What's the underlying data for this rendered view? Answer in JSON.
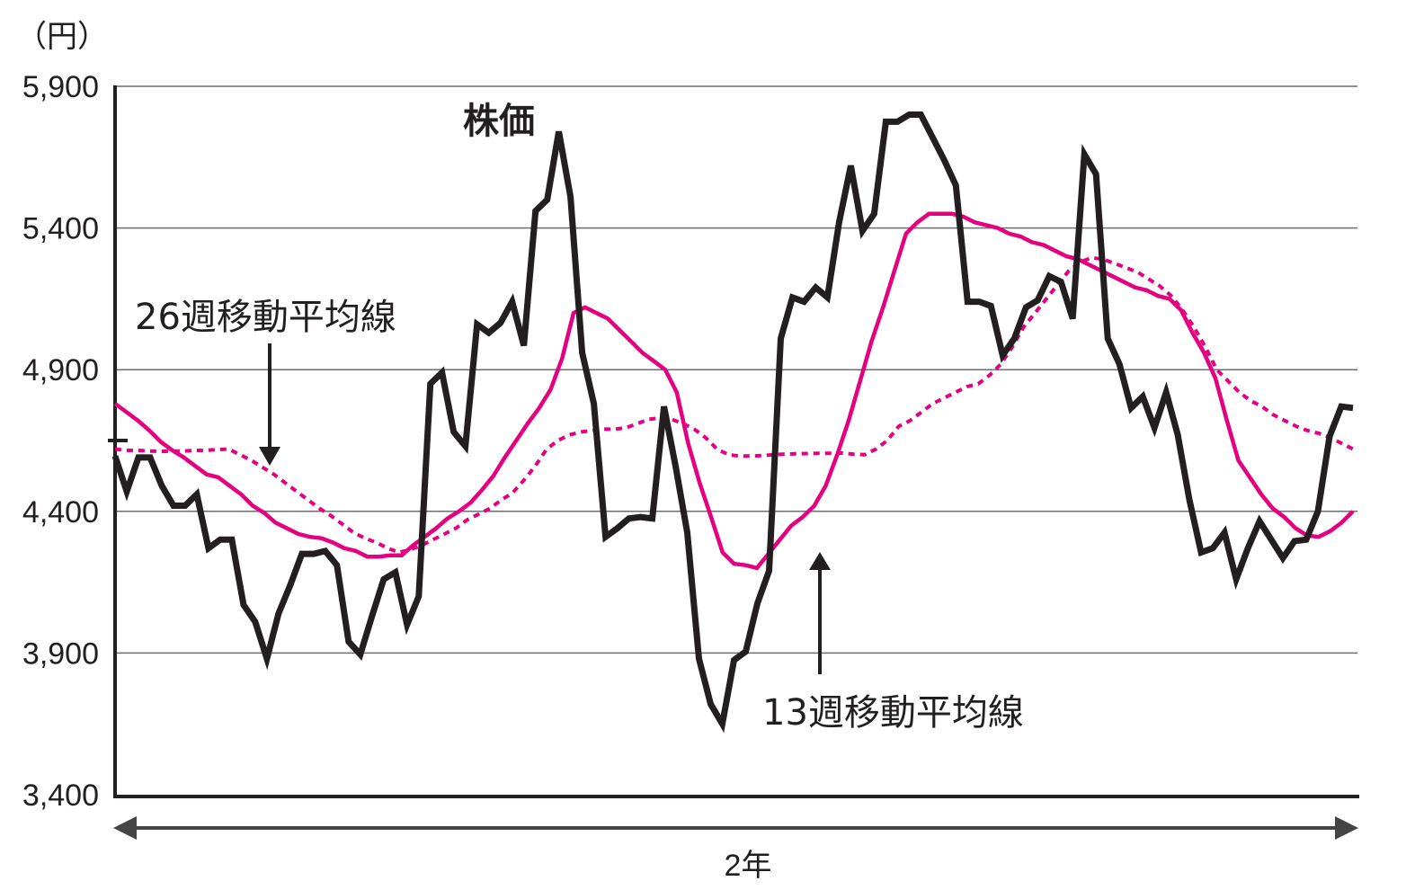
{
  "chart_data": {
    "type": "line",
    "unit_label": "（円）",
    "ylim": [
      3400,
      5900
    ],
    "y_ticks": [
      "5,900",
      "5,400",
      "4,900",
      "4,400",
      "3,900",
      "3,400"
    ],
    "grid": true,
    "x_axis_label": "2年",
    "series": [
      {
        "name": "株価",
        "color": "#231f20",
        "style": "solid",
        "values": [
          4595,
          4470,
          4590,
          4590,
          4490,
          4420,
          4420,
          4460,
          4270,
          4300,
          4300,
          4070,
          4010,
          3880,
          4040,
          4140,
          4250,
          4250,
          4260,
          4210,
          3940,
          3895,
          4030,
          4160,
          4185,
          4000,
          4100,
          4850,
          4890,
          4680,
          4630,
          5060,
          5030,
          5065,
          5140,
          4985,
          5460,
          5500,
          5740,
          5510,
          4960,
          4780,
          4310,
          4340,
          4375,
          4380,
          4375,
          4770,
          4560,
          4325,
          3880,
          3720,
          3650,
          3875,
          3905,
          4075,
          4190,
          5010,
          5155,
          5140,
          5190,
          5155,
          5420,
          5620,
          5390,
          5450,
          5775,
          5775,
          5800,
          5800,
          5720,
          5640,
          5550,
          5140,
          5140,
          5125,
          4950,
          5010,
          5120,
          5145,
          5230,
          5210,
          5080,
          5660,
          5590,
          5010,
          4920,
          4765,
          4805,
          4695,
          4820,
          4670,
          4440,
          4255,
          4270,
          4325,
          4160,
          4270,
          4365,
          4300,
          4235,
          4295,
          4300,
          4400,
          4665,
          4770,
          4765
        ]
      },
      {
        "name": "13週移動平均線",
        "color": "#e4007f",
        "style": "solid",
        "values": [
          4780,
          4750,
          4720,
          4685,
          4645,
          4615,
          4590,
          4560,
          4530,
          4520,
          4490,
          4460,
          4420,
          4395,
          4360,
          4340,
          4320,
          4310,
          4305,
          4290,
          4270,
          4260,
          4240,
          4240,
          4245,
          4245,
          4280,
          4310,
          4340,
          4375,
          4400,
          4430,
          4475,
          4525,
          4590,
          4650,
          4710,
          4765,
          4830,
          4940,
          5100,
          5120,
          5100,
          5080,
          5040,
          5000,
          4960,
          4930,
          4900,
          4820,
          4640,
          4500,
          4380,
          4255,
          4215,
          4210,
          4200,
          4250,
          4300,
          4350,
          4380,
          4420,
          4490,
          4600,
          4720,
          4860,
          5000,
          5120,
          5250,
          5380,
          5420,
          5450,
          5450,
          5450,
          5440,
          5420,
          5410,
          5400,
          5380,
          5370,
          5350,
          5340,
          5320,
          5300,
          5290,
          5270,
          5250,
          5230,
          5210,
          5190,
          5180,
          5160,
          5150,
          5110,
          5030,
          4960,
          4870,
          4720,
          4580,
          4520,
          4460,
          4410,
          4380,
          4340,
          4315,
          4310,
          4330,
          4360,
          4400
        ]
      },
      {
        "name": "26週移動平均線",
        "color": "#e4007f",
        "style": "dashed",
        "values": [
          4620,
          4615,
          4615,
          4613,
          4612,
          4612,
          4613,
          4615,
          4615,
          4618,
          4620,
          4600,
          4580,
          4555,
          4530,
          4500,
          4470,
          4440,
          4410,
          4385,
          4355,
          4325,
          4305,
          4290,
          4270,
          4255,
          4265,
          4280,
          4300,
          4320,
          4340,
          4370,
          4390,
          4410,
          4440,
          4465,
          4510,
          4560,
          4620,
          4650,
          4670,
          4680,
          4685,
          4690,
          4690,
          4695,
          4710,
          4725,
          4730,
          4725,
          4710,
          4690,
          4660,
          4620,
          4600,
          4595,
          4595,
          4597,
          4600,
          4602,
          4603,
          4604,
          4605,
          4605,
          4606,
          4602,
          4600,
          4620,
          4650,
          4700,
          4720,
          4750,
          4780,
          4800,
          4820,
          4840,
          4850,
          4880,
          4920,
          4980,
          5050,
          5100,
          5150,
          5200,
          5250,
          5280,
          5295,
          5290,
          5275,
          5260,
          5245,
          5220,
          5195,
          5160,
          5110,
          5050,
          4980,
          4900,
          4860,
          4820,
          4790,
          4770,
          4740,
          4720,
          4700,
          4685,
          4675,
          4660,
          4640,
          4620
        ]
      }
    ],
    "annotations": [
      {
        "text": "株価",
        "target": "株価"
      },
      {
        "text": "26週移動平均線",
        "target": "26週移動平均線"
      },
      {
        "text": "13週移動平均線",
        "target": "13週移動平均線"
      }
    ]
  }
}
